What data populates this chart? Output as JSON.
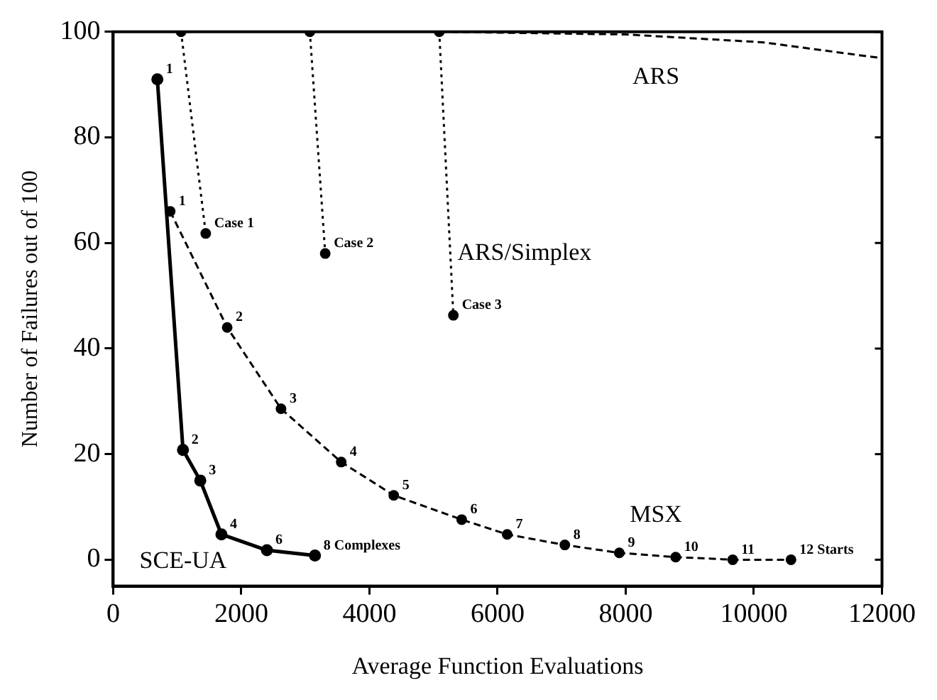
{
  "chart_data": {
    "type": "line",
    "xlabel": "Average Function Evaluations",
    "ylabel": "Number of Failures out of 100",
    "xlim": [
      0,
      12000
    ],
    "xticks": [
      0,
      2000,
      4000,
      6000,
      8000,
      10000,
      12000
    ],
    "ylim": [
      -5,
      100
    ],
    "yticks": [
      0,
      20,
      40,
      60,
      80,
      100
    ],
    "grid": false,
    "legend": false,
    "series": [
      {
        "name": "SCE-UA",
        "color": "#000000",
        "marker": "circle",
        "line_style": "solid",
        "x": [
          690,
          1090,
          1360,
          1690,
          2400,
          3150
        ],
        "values": [
          91,
          20.8,
          15,
          4.8,
          1.8,
          0.8
        ]
      },
      {
        "name": "MSX",
        "color": "#000000",
        "marker": "circle",
        "line_style": "dashed",
        "x": [
          890,
          1780,
          2620,
          3560,
          4380,
          5440,
          6150,
          7050,
          7900,
          8780,
          9670,
          10580
        ],
        "values": [
          66,
          44,
          28.6,
          18.5,
          12.2,
          7.6,
          4.8,
          2.8,
          1.3,
          0.5,
          0,
          0
        ]
      },
      {
        "name": "ARS",
        "color": "#000000",
        "marker": "none",
        "line_style": "dashed",
        "x": [
          5100,
          8000,
          10150,
          12000
        ],
        "values": [
          100,
          99.5,
          98,
          95
        ]
      },
      {
        "color": "#000000",
        "marker": "circle",
        "line_style": "dotted",
        "x": [
          1060,
          1445
        ],
        "values": [
          100,
          61.8
        ]
      },
      {
        "color": "#000000",
        "marker": "circle",
        "line_style": "dotted",
        "x": [
          3070,
          3310
        ],
        "values": [
          100,
          58
        ]
      },
      {
        "name": "ARS/Simplex",
        "color": "#000000",
        "marker": "circle",
        "line_style": "dotted",
        "x": [
          5090,
          5310
        ],
        "values": [
          100,
          46.3
        ]
      }
    ],
    "annotations": [
      {
        "text": "Case 1",
        "x": 1445,
        "y": 61.8
      },
      {
        "text": "Case 2",
        "x": 3310,
        "y": 58
      },
      {
        "text": "Case 3",
        "x": 5310,
        "y": 46.3
      },
      {
        "text": "1",
        "x": 690,
        "y": 91
      },
      {
        "text": "2",
        "x": 1090,
        "y": 20.8
      },
      {
        "text": "3",
        "x": 1360,
        "y": 15
      },
      {
        "text": "4",
        "x": 1690,
        "y": 4.8
      },
      {
        "text": "6",
        "x": 2400,
        "y": 1.8
      },
      {
        "text": "8 Complexes",
        "x": 3150,
        "y": 0.8
      },
      {
        "text": "1",
        "x": 890,
        "y": 66
      },
      {
        "text": "2",
        "x": 1780,
        "y": 44
      },
      {
        "text": "3",
        "x": 2620,
        "y": 28.6
      },
      {
        "text": "4",
        "x": 3560,
        "y": 18.5
      },
      {
        "text": "5",
        "x": 4380,
        "y": 12.2
      },
      {
        "text": "6",
        "x": 5440,
        "y": 7.6
      },
      {
        "text": "7",
        "x": 6150,
        "y": 4.8
      },
      {
        "text": "8",
        "x": 7050,
        "y": 2.8
      },
      {
        "text": "9",
        "x": 7900,
        "y": 1.3
      },
      {
        "text": "10",
        "x": 8780,
        "y": 0.5
      },
      {
        "text": "11",
        "x": 9670,
        "y": 0
      },
      {
        "text": "12 Starts",
        "x": 10580,
        "y": 0
      }
    ]
  }
}
